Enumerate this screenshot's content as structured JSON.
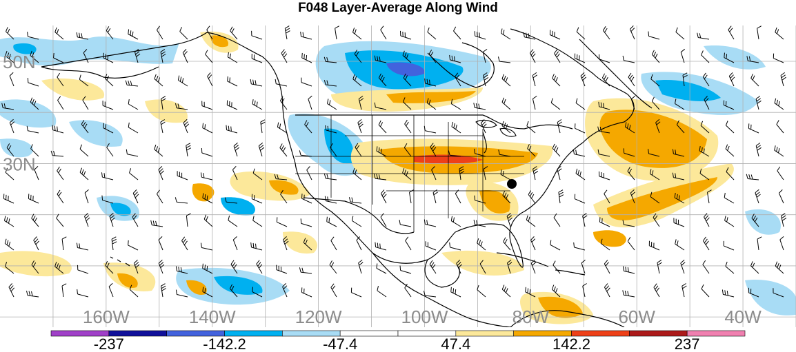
{
  "title": "F048 Layer-Average Along Wind",
  "map": {
    "projection": "cylindrical",
    "region": "North America and adjacent Pacific / Atlantic oceans",
    "lon_range": [
      -180,
      -30
    ],
    "lat_range": [
      -2,
      57
    ],
    "graticule_step_deg": 10,
    "lat_labels": [
      "50N",
      "30N"
    ],
    "lon_labels": [
      "160W",
      "140W",
      "120W",
      "100W",
      "80W",
      "60W",
      "40W"
    ],
    "overlays": [
      "shaded contours",
      "wind barbs",
      "coastlines",
      "state and country borders",
      "marked point (black dot)"
    ],
    "label_color": "#8c8c8c"
  },
  "colorbar": {
    "tick_labels": [
      "-237",
      "-142.2",
      "-47.4",
      "47.4",
      "142.2",
      "237"
    ],
    "colors": [
      "#a040c8",
      "#10109a",
      "#4262dd",
      "#00b0f0",
      "#a8dcf5",
      "#ffffff",
      "#ffffff",
      "#fce89a",
      "#f5a800",
      "#ee4018",
      "#ac1a1a",
      "#f080b0"
    ]
  }
}
